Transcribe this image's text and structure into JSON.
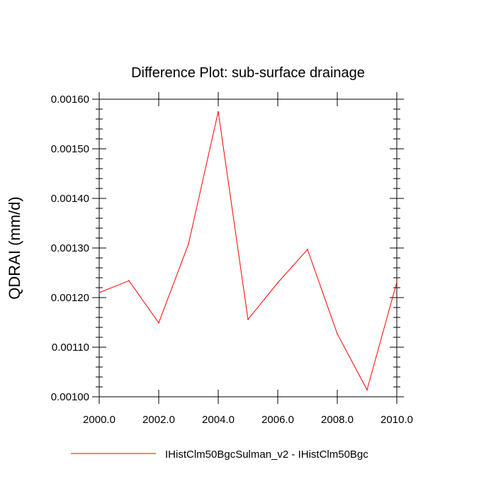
{
  "chart_data": {
    "type": "line",
    "title": "Difference Plot: sub-surface drainage",
    "xlabel": "",
    "ylabel": "QDRAI  (mm/d)",
    "xlim": [
      2000,
      2010
    ],
    "ylim": [
      0.001,
      0.0016
    ],
    "x_ticks": [
      2000,
      2002,
      2004,
      2006,
      2008,
      2010
    ],
    "x_tick_labels": [
      "2000.0",
      "2002.0",
      "2004.0",
      "2006.0",
      "2008.0",
      "2010.0"
    ],
    "y_ticks": [
      0.001,
      0.0011,
      0.0012,
      0.0013,
      0.0014,
      0.0015,
      0.0016
    ],
    "y_tick_labels": [
      "0.00100",
      "0.00110",
      "0.00120",
      "0.00130",
      "0.00140",
      "0.00150",
      "0.00160"
    ],
    "grid": false,
    "legend_position": "bottom",
    "series": [
      {
        "name": "IHistClm50BgcSulman_v2 - IHistClm50Bgc",
        "color": "#ff0000",
        "x": [
          2000,
          2001,
          2002,
          2003,
          2004,
          2005,
          2006,
          2007,
          2008,
          2009,
          2010
        ],
        "values": [
          0.00121,
          0.001234,
          0.001149,
          0.001308,
          0.001575,
          0.001156,
          0.00123,
          0.001297,
          0.001127,
          0.001014,
          0.001231
        ]
      }
    ]
  }
}
